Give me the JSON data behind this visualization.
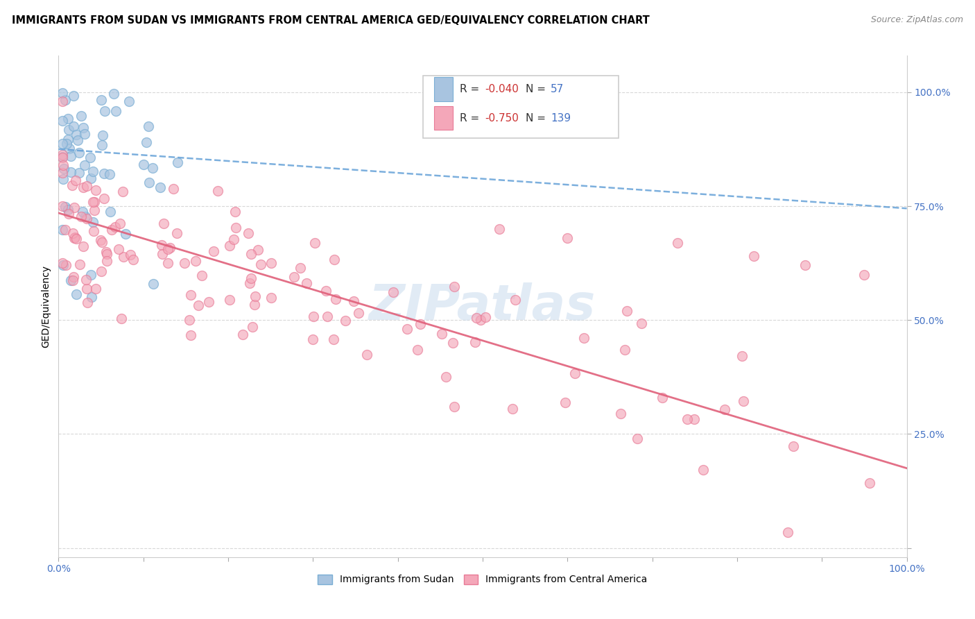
{
  "title": "IMMIGRANTS FROM SUDAN VS IMMIGRANTS FROM CENTRAL AMERICA GED/EQUIVALENCY CORRELATION CHART",
  "source": "Source: ZipAtlas.com",
  "ylabel": "GED/Equivalency",
  "legend_label_blue": "Immigrants from Sudan",
  "legend_label_pink": "Immigrants from Central America",
  "r_blue": -0.04,
  "n_blue": 57,
  "r_pink": -0.75,
  "n_pink": 139,
  "blue_color": "#a8c4e0",
  "blue_edge_color": "#7aaed4",
  "pink_color": "#f4a7b9",
  "pink_edge_color": "#e87a96",
  "blue_line_color": "#5b9bd5",
  "pink_line_color": "#e0607a",
  "tick_color": "#4472c4",
  "background_color": "#ffffff",
  "grid_color": "#d8d8d8",
  "blue_trend_x0": 0.0,
  "blue_trend_y0": 0.875,
  "blue_trend_x1": 1.0,
  "blue_trend_y1": 0.745,
  "pink_trend_x0": 0.0,
  "pink_trend_y0": 0.735,
  "pink_trend_x1": 1.0,
  "pink_trend_y1": 0.175,
  "xlim": [
    0.0,
    1.0
  ],
  "ylim": [
    -0.02,
    1.08
  ],
  "title_fontsize": 10.5,
  "axis_label_fontsize": 10,
  "tick_fontsize": 10,
  "legend_fontsize": 10,
  "watermark_text": "ZIPatlas",
  "watermark_color": "#c5d8ec",
  "watermark_alpha": 0.5
}
